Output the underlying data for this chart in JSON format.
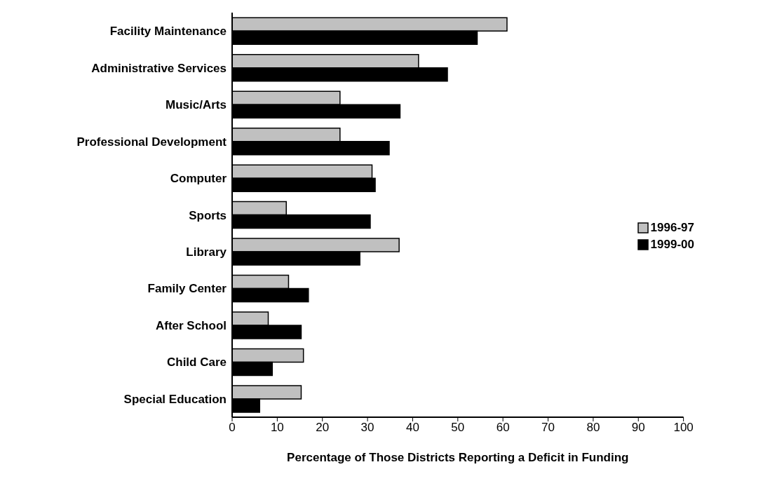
{
  "chart_data": {
    "type": "bar",
    "orientation": "horizontal",
    "xlabel": "Percentage of Those Districts Reporting a Deficit in Funding",
    "categories": [
      "Facility Maintenance",
      "Administrative Services",
      "Music/Arts",
      "Professional Development",
      "Computer",
      "Sports",
      "Library",
      "Family Center",
      "After School",
      "Child Care",
      "Special Education"
    ],
    "series": [
      {
        "name": "1996-97",
        "color": "#c0c0c0",
        "values": [
          60.9,
          41.3,
          23.9,
          23.9,
          31.0,
          12.0,
          37.0,
          12.5,
          8.0,
          15.8,
          15.3
        ]
      },
      {
        "name": "1999-00",
        "color": "#000000",
        "values": [
          54.3,
          47.7,
          37.2,
          34.8,
          31.7,
          30.6,
          28.3,
          16.9,
          15.3,
          8.9,
          6.1
        ]
      }
    ],
    "xlim": [
      0,
      100
    ],
    "xticks": [
      0,
      10,
      20,
      30,
      40,
      50,
      60,
      70,
      80,
      90,
      100
    ],
    "grid": false,
    "legend": "right"
  }
}
